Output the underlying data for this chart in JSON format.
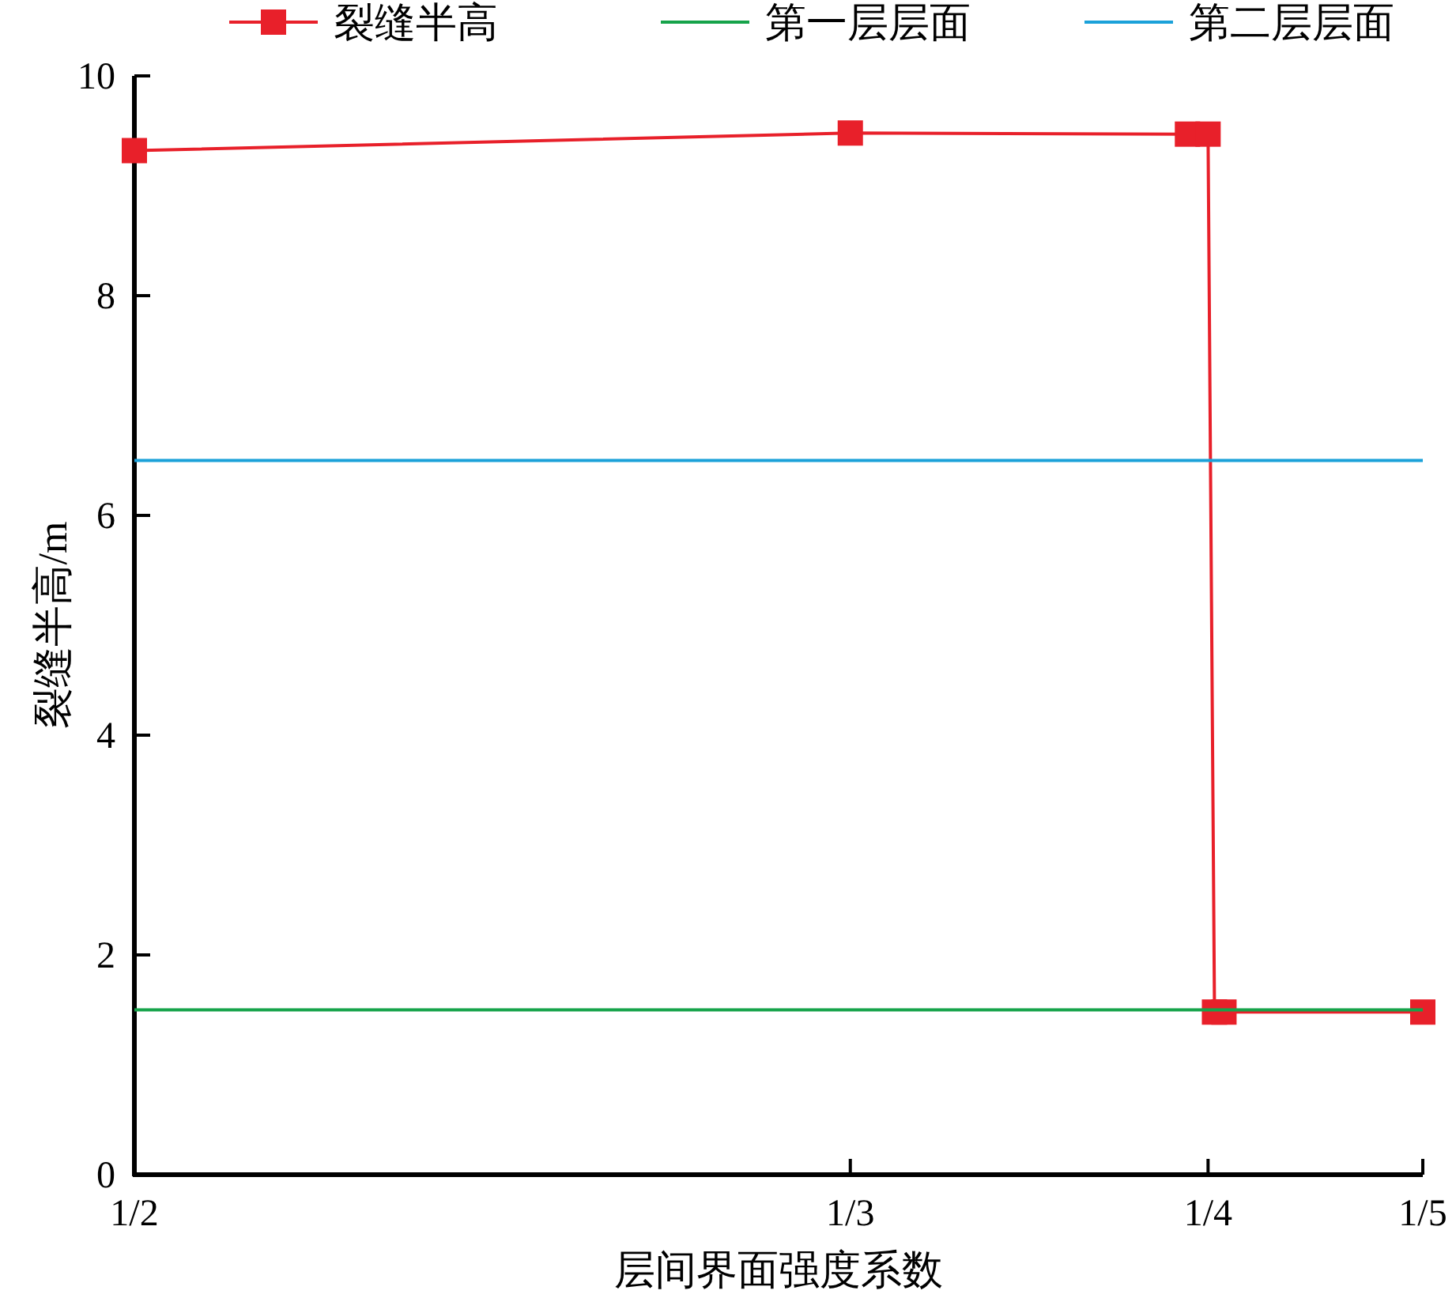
{
  "chart_data": {
    "type": "line",
    "xlabel": "层间界面强度系数",
    "ylabel": "裂缝半高/m",
    "xlim": [
      0.5,
      0.2
    ],
    "xticks": [
      {
        "value": 0.5,
        "label": "1/2"
      },
      {
        "value": 0.3333,
        "label": "1/3"
      },
      {
        "value": 0.25,
        "label": "1/4"
      },
      {
        "value": 0.2,
        "label": "1/5"
      }
    ],
    "ylim": [
      0,
      10
    ],
    "yticks": [
      0,
      2,
      4,
      6,
      8,
      10
    ],
    "legend": "top",
    "grid": false,
    "series": [
      {
        "name": "裂缝半高",
        "color": "#e8202a",
        "marker": "square",
        "x": [
          0.5,
          0.3333,
          0.2548,
          0.25,
          0.2485,
          0.2463,
          0.2
        ],
        "values": [
          9.32,
          9.48,
          9.47,
          9.47,
          1.48,
          1.48,
          1.48
        ]
      },
      {
        "name": "第一层层面",
        "color": "#16a34a",
        "marker": "none",
        "x": [
          0.5,
          0.2
        ],
        "values": [
          1.5,
          1.5
        ]
      },
      {
        "name": "第二层层面",
        "color": "#1ba1d9",
        "marker": "none",
        "x": [
          0.5,
          0.2
        ],
        "values": [
          6.5,
          6.5
        ]
      }
    ]
  }
}
